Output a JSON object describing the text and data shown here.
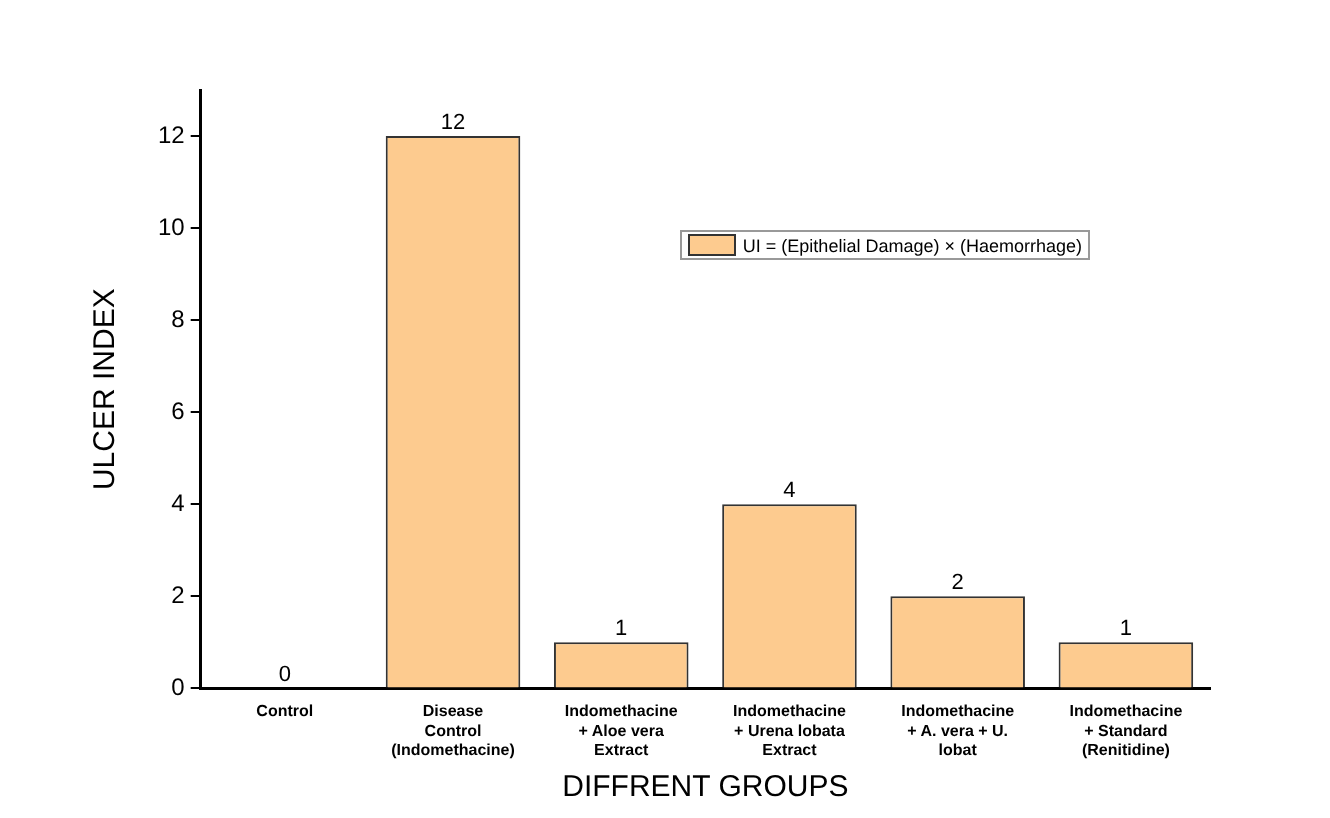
{
  "chart_data": {
    "type": "bar",
    "xlabel": "DIFFRENT GROUPS",
    "ylabel": "ULCER INDEX",
    "categories": [
      "Control",
      "Disease\nControl\n(Indomethacine)",
      "Indomethacine\n+ Aloe vera\nExtract",
      "Indomethacine\n+ Urena lobata\nExtract",
      "Indomethacine\n+ A. vera + U.\nlobat",
      "Indomethacine\n+ Standard\n(Renitidine)"
    ],
    "series": [
      {
        "name": "UI = (Epithelial Damage) × (Haemorrhage)",
        "color": "#fdcb8f",
        "values": [
          0,
          12,
          1,
          4,
          2,
          1
        ]
      }
    ],
    "ylim": [
      0,
      13
    ],
    "yticks": [
      0,
      2,
      4,
      6,
      8,
      10,
      12
    ],
    "data_labels": true,
    "grid": false,
    "legend": "top right"
  }
}
